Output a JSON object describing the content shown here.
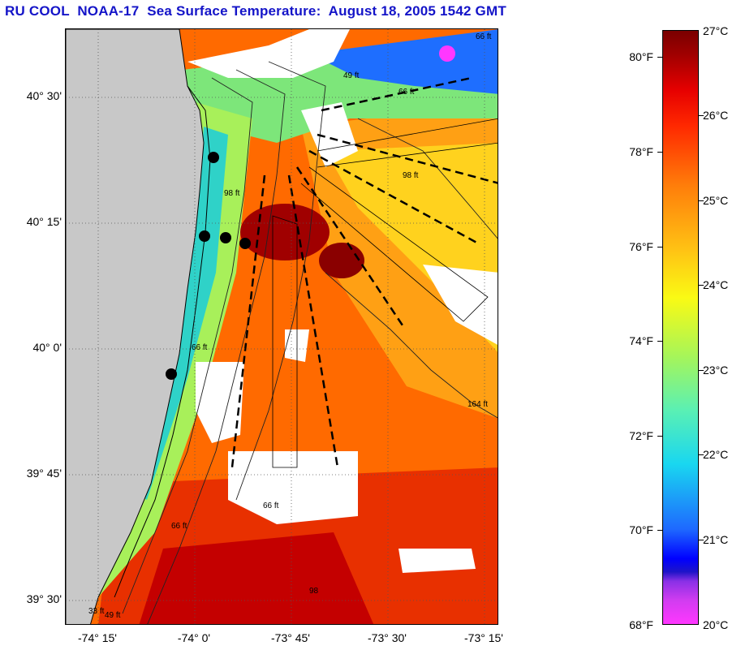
{
  "title": "RU COOL  NOAA-17  Sea Surface Temperature:  August 18, 2005 1542 GMT",
  "map": {
    "lat_labels": [
      "40° 30'",
      "40° 15'",
      "40° 0'",
      "39° 45'",
      "39° 30'"
    ],
    "lon_labels": [
      "-74° 15'",
      "-74° 0'",
      "-73° 45'",
      "-73° 30'",
      "-73° 15'"
    ],
    "isobath_labels": [
      "49 ft",
      "66 ft",
      "98 ft",
      "98 ft",
      "66 ft",
      "164 ft",
      "66 ft",
      "66 ft",
      "33 ft",
      "49 ft",
      "98",
      "66 ft"
    ],
    "station_count": 6,
    "colors": {
      "land": "#c8c8c8",
      "cloud": "#ffffff",
      "grid": "#555555"
    }
  },
  "colorbar": {
    "fahrenheit_labels": [
      "80°F",
      "78°F",
      "76°F",
      "74°F",
      "72°F",
      "70°F",
      "68°F"
    ],
    "celsius_labels": [
      "27°C",
      "26°C",
      "25°C",
      "24°C",
      "23°C",
      "22°C",
      "21°C",
      "20°C"
    ],
    "range_c": [
      20,
      27
    ]
  }
}
